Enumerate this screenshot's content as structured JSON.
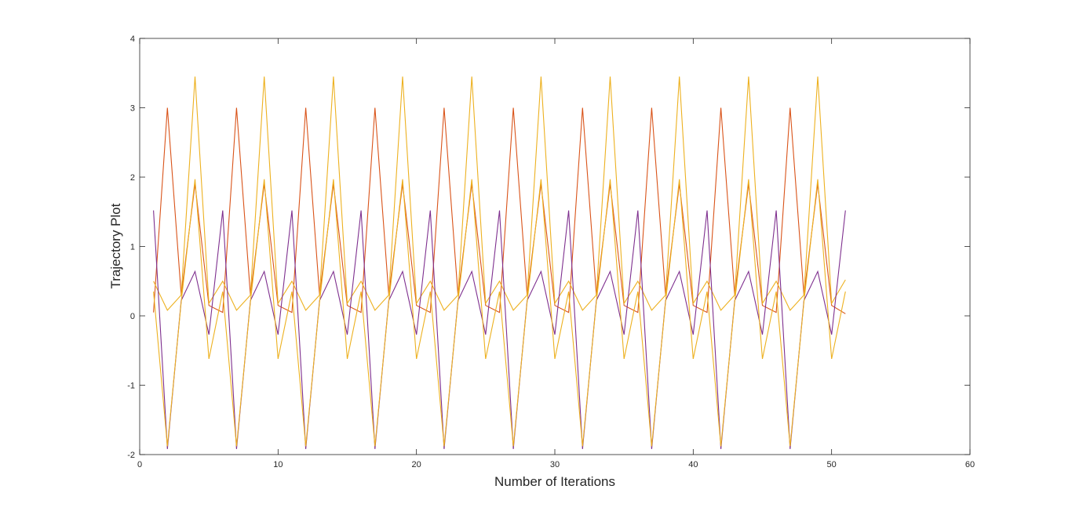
{
  "chart_data": {
    "type": "line",
    "title": "",
    "xlabel": "Number of Iterations",
    "ylabel": "Trajectory Plot",
    "xlim": [
      0,
      60
    ],
    "ylim": [
      -2,
      4
    ],
    "xticks": [
      0,
      10,
      20,
      30,
      40,
      50,
      60
    ],
    "yticks": [
      -2,
      -1,
      0,
      1,
      2,
      3,
      4
    ],
    "grid": false,
    "legend": "none",
    "x": [
      1,
      51
    ],
    "series": [
      {
        "color": "#D95319",
        "pattern": [
          0.05,
          3.0,
          0.3,
          1.9,
          0.15,
          0.03
        ],
        "period": 5
      },
      {
        "color": "#EDB120",
        "pattern": [
          0.5,
          0.08,
          0.3,
          3.45,
          0.18,
          0.52
        ],
        "period": 5
      },
      {
        "color": "#7E2F8E",
        "pattern": [
          1.52,
          -1.92,
          0.22,
          0.64,
          -0.27,
          1.52
        ],
        "period": 5
      },
      {
        "color": "#EDB120",
        "pattern": [
          0.35,
          -1.88,
          0.2,
          1.97,
          -0.62,
          0.35
        ],
        "period": 5
      }
    ]
  }
}
